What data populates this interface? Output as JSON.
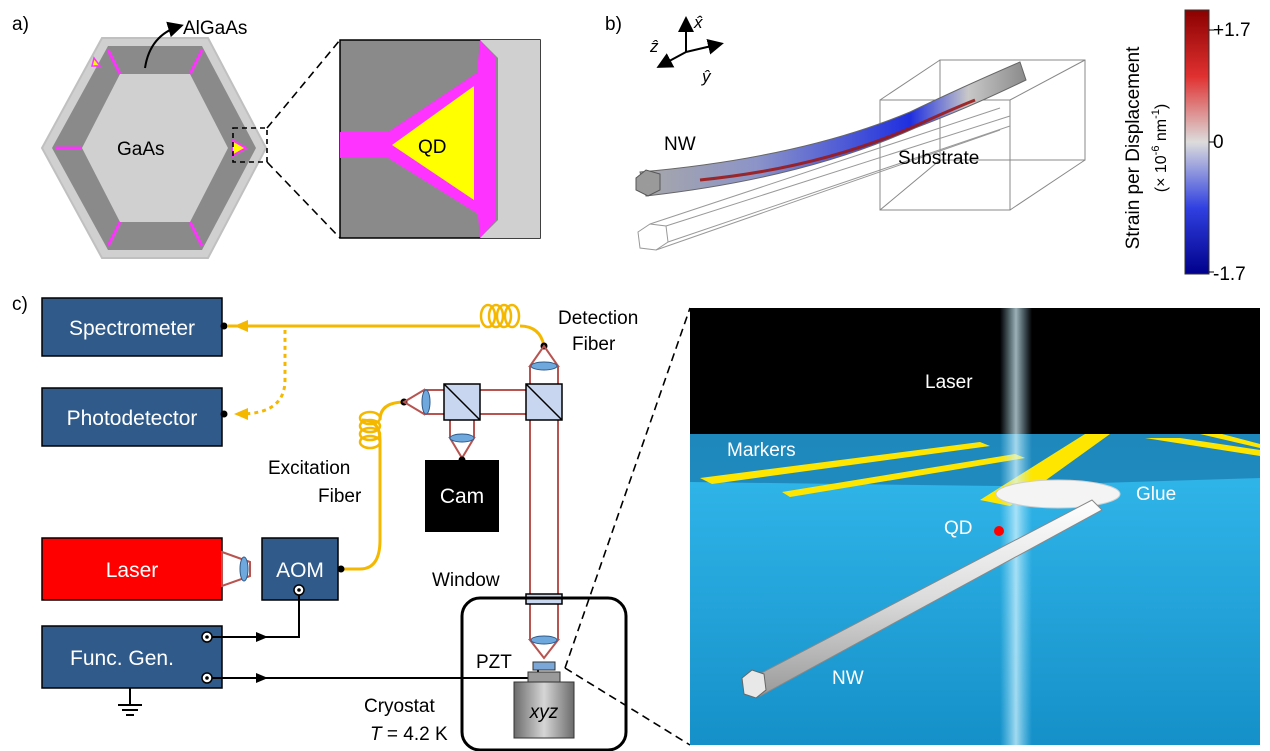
{
  "panels": {
    "a": "a)",
    "b": "b)",
    "c": "c)"
  },
  "panel_a": {
    "outer_label": "AlGaAs",
    "core_label": "GaAs",
    "qd_label": "QD"
  },
  "panel_b": {
    "axes": {
      "x": "x̂",
      "y": "ŷ",
      "z": "ẑ"
    },
    "nw_label": "NW",
    "substrate_label": "Substrate",
    "colorbar": {
      "title": "Strain per Displacement",
      "unit_prefix": "(× 10",
      "unit_exp": "-6",
      "unit_mid": " nm",
      "unit_exp2": "-1",
      "unit_suffix": ")",
      "max": "+1.7",
      "mid": "0",
      "min": "-1.7",
      "colors": {
        "max": "#8b0000",
        "mid": "#d9d9d9",
        "min": "#00008b"
      }
    }
  },
  "panel_c": {
    "boxes": {
      "spectrometer": "Spectrometer",
      "photodetector": "Photodetector",
      "laser": "Laser",
      "aom": "AOM",
      "funcgen": "Func. Gen.",
      "cam": "Cam",
      "xyz": "xyz"
    },
    "labels": {
      "detection_1": "Detection",
      "detection_2": "Fiber",
      "excitation_1": "Excitation",
      "excitation_2": "Fiber",
      "window": "Window",
      "pzt": "PZT",
      "cryostat": "Cryostat",
      "temp_var": "T",
      "temp_val": " = 4.2 K"
    },
    "render": {
      "laser": "Laser",
      "markers": "Markers",
      "glue": "Glue",
      "qd": "QD",
      "nw": "NW"
    },
    "colors": {
      "box": "#2f5a8a",
      "laser_box": "#ff0000",
      "fiber": "#f5b800",
      "beam": "#b85450"
    }
  }
}
